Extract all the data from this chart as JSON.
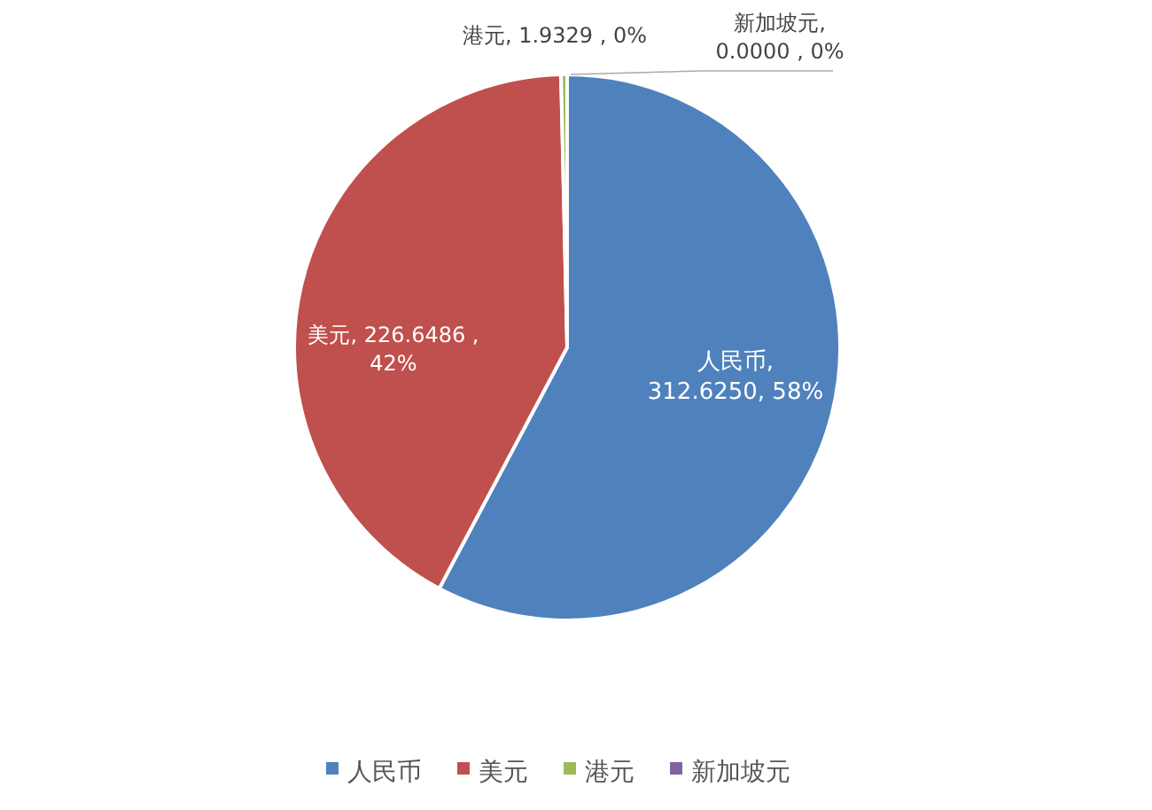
{
  "chart_data": {
    "type": "pie",
    "categories": [
      "人民币",
      "美元",
      "港元",
      "新加坡元"
    ],
    "values": [
      312.625,
      226.6486,
      1.9329,
      0
    ],
    "colors": [
      "#4f81bd",
      "#c0504d",
      "#9bbb59",
      "#8064a2"
    ],
    "value_labels": [
      "人民币, 312.6250, 58%",
      "美元, 226.6486 , 42%",
      "港元, 1.9329 , 0%",
      "新加坡元, 0.0000 , 0%"
    ],
    "legend": "bottom"
  }
}
